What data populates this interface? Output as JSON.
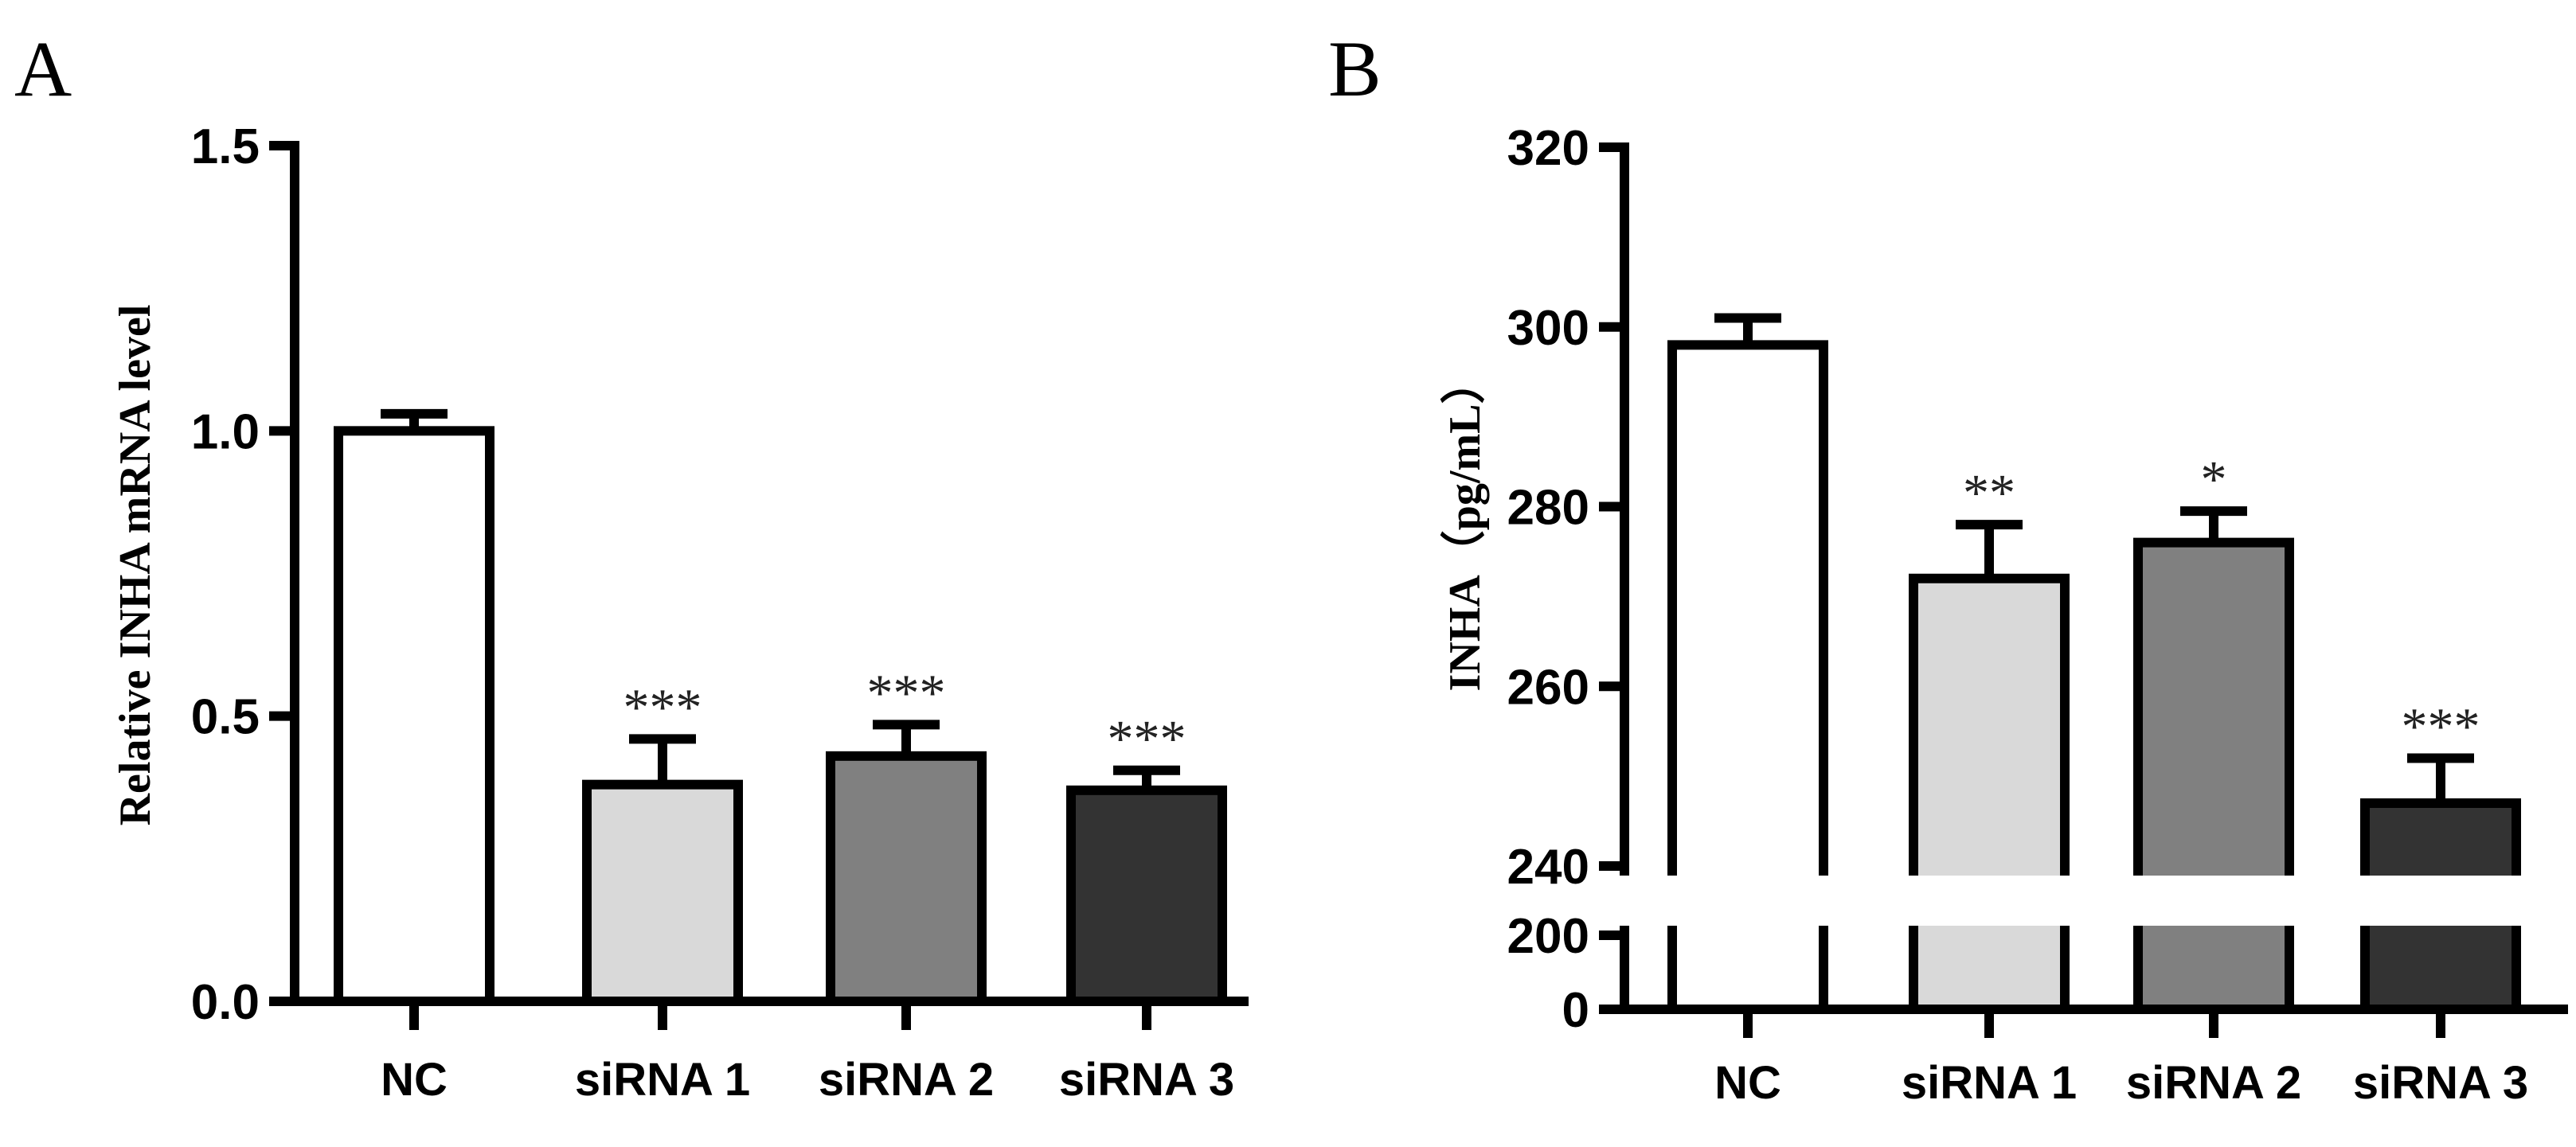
{
  "chart_data": [
    {
      "panel": "A",
      "type": "bar",
      "title": "",
      "xlabel": "",
      "ylabel": "Relative INHA mRNA level",
      "categories": [
        "NC",
        "siRNA 1",
        "siRNA 2",
        "siRNA 3"
      ],
      "values": [
        1.0,
        0.38,
        0.43,
        0.37
      ],
      "errors": [
        0.03,
        0.08,
        0.055,
        0.035
      ],
      "significance": [
        "",
        "***",
        "***",
        "***"
      ],
      "ylim": [
        0,
        1.5
      ],
      "yticks": [
        0,
        0.5,
        1.0,
        1.5
      ],
      "ytick_labels": [
        "0.0",
        "0.5",
        "1.0",
        "1.5"
      ],
      "colors": [
        "#ffffff",
        "#d9d9d9",
        "#808080",
        "#333333"
      ],
      "grid": false
    },
    {
      "panel": "B",
      "type": "bar",
      "title": "",
      "xlabel": "",
      "ylabel": "INHA（pg/mL）",
      "categories": [
        "NC",
        "siRNA 1",
        "siRNA 2",
        "siRNA 3"
      ],
      "values": [
        298,
        272,
        276,
        247
      ],
      "errors": [
        3,
        6,
        3.5,
        5
      ],
      "significance": [
        "",
        "**",
        "*",
        "***"
      ],
      "ylim": [
        0,
        320
      ],
      "axis_break": [
        200,
        240
      ],
      "yticks": [
        0,
        200,
        240,
        260,
        280,
        300,
        320
      ],
      "ytick_labels": [
        "0",
        "200",
        "240",
        "260",
        "280",
        "300",
        "320"
      ],
      "colors": [
        "#ffffff",
        "#d9d9d9",
        "#808080",
        "#333333"
      ],
      "grid": false
    }
  ]
}
